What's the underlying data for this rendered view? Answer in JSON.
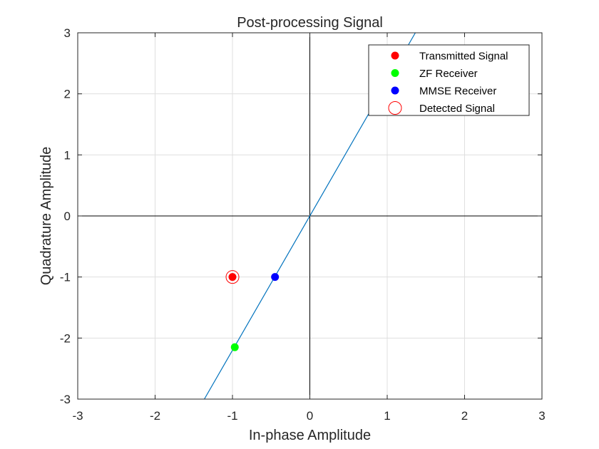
{
  "chart_data": {
    "type": "scatter",
    "title": "Post-processing Signal",
    "xlabel": "In-phase Amplitude",
    "ylabel": "Quadrature Amplitude",
    "xlim": [
      -3,
      3
    ],
    "ylim": [
      -3,
      3
    ],
    "xticks": [
      -3,
      -2,
      -1,
      0,
      1,
      2,
      3
    ],
    "yticks": [
      -3,
      -2,
      -1,
      0,
      1,
      2,
      3
    ],
    "grid": true,
    "legend_position": "top-right",
    "line": {
      "slope": 2.2,
      "intercept": 0,
      "color": "#0072bd"
    },
    "series": [
      {
        "name": "Transmitted Signal",
        "marker": "filled-circle",
        "color": "#ff0000",
        "points": [
          {
            "x": -1.0,
            "y": -1.0
          }
        ]
      },
      {
        "name": "ZF Receiver",
        "marker": "filled-circle",
        "color": "#00ff00",
        "points": [
          {
            "x": -0.97,
            "y": -2.15
          }
        ]
      },
      {
        "name": "MMSE Receiver",
        "marker": "filled-circle",
        "color": "#0000ff",
        "points": [
          {
            "x": -0.45,
            "y": -1.0
          }
        ]
      },
      {
        "name": "Detected Signal",
        "marker": "open-circle",
        "color": "#ff0000",
        "points": [
          {
            "x": -1.0,
            "y": -1.0
          }
        ]
      }
    ]
  }
}
